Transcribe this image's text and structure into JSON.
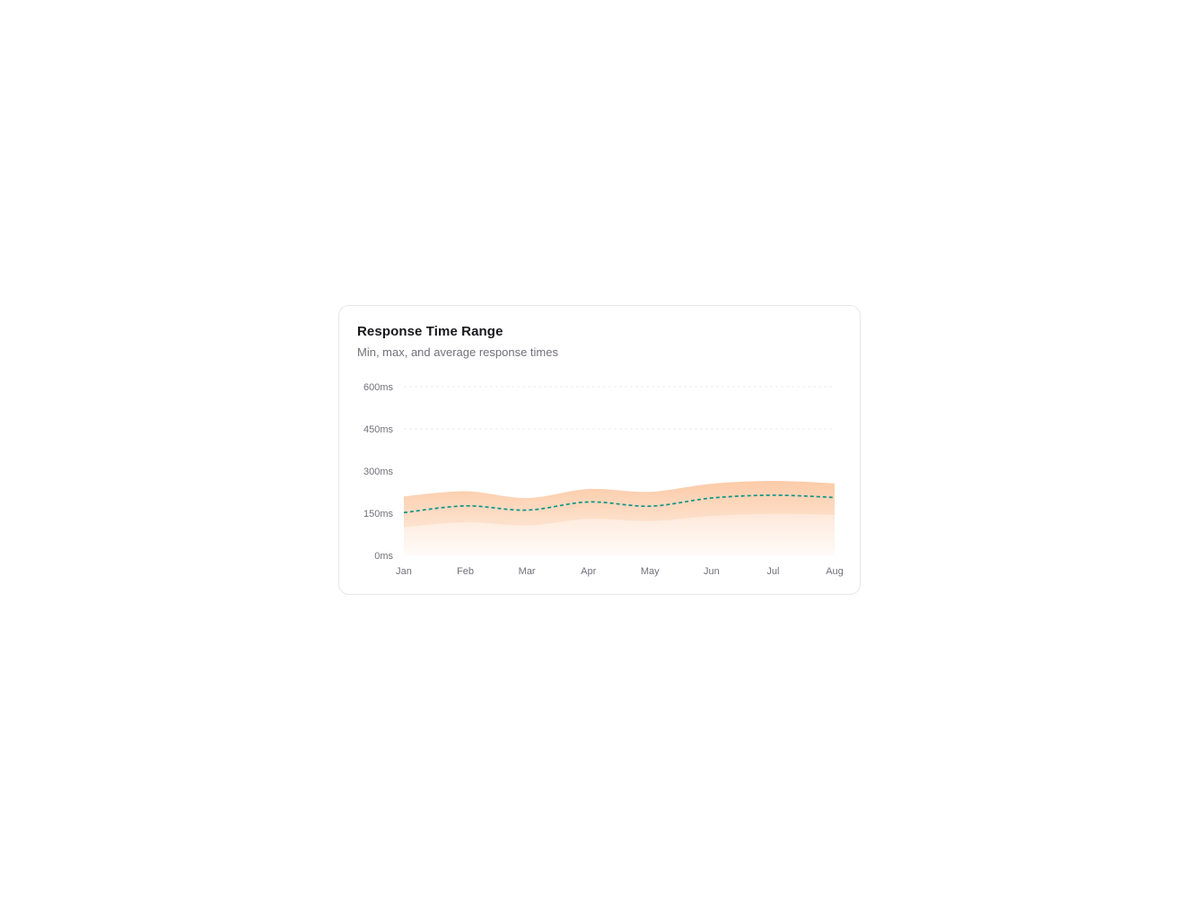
{
  "card": {
    "title": "Response Time Range",
    "subtitle": "Min, max, and average response times"
  },
  "chart_data": {
    "type": "area",
    "title": "Response Time Range",
    "subtitle": "Min, max, and average response times",
    "x": [
      "Jan",
      "Feb",
      "Mar",
      "Apr",
      "May",
      "Jun",
      "Jul",
      "Aug"
    ],
    "series": [
      {
        "name": "max",
        "style": "band-top",
        "values": [
          210,
          228,
          204,
          236,
          226,
          255,
          265,
          256
        ]
      },
      {
        "name": "avg",
        "style": "dashed-line",
        "values": [
          152,
          176,
          161,
          190,
          175,
          204,
          214,
          206
        ]
      },
      {
        "name": "min",
        "style": "band-bottom",
        "values": [
          100,
          118,
          106,
          130,
          122,
          140,
          148,
          144
        ]
      }
    ],
    "unit": "ms",
    "ylim": [
      0,
      600
    ],
    "y_ticks": [
      0,
      150,
      300,
      450,
      600
    ],
    "y_tick_labels": [
      "0ms",
      "150ms",
      "300ms",
      "450ms",
      "600ms"
    ],
    "grid_lines_at": [
      450,
      600
    ],
    "legend": "none",
    "colors": {
      "band_base": "#f97316",
      "avg_line": "#0d9488",
      "grid_line": "#e5e7eb",
      "tick_text": "#71717a"
    }
  }
}
